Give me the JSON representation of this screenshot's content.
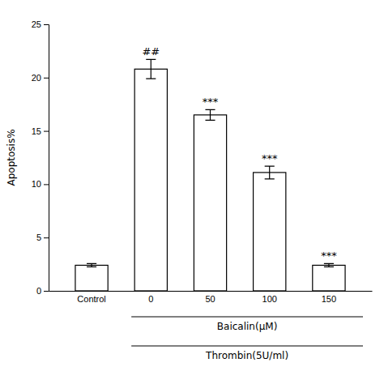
{
  "chart_data": {
    "type": "bar",
    "categories": [
      "Control",
      "0",
      "50",
      "100",
      "150"
    ],
    "values": [
      2.4,
      20.8,
      16.5,
      11.1,
      2.4
    ],
    "errors": [
      0.15,
      0.9,
      0.5,
      0.6,
      0.15
    ],
    "color": "#ffffff",
    "ylabel": "Apoptosis%",
    "ylim": [
      0,
      25
    ],
    "yticks": [
      0,
      5,
      10,
      15,
      20,
      25
    ],
    "annotations": [
      {
        "text": "##",
        "category": "0"
      },
      {
        "text": "***",
        "category": "50"
      },
      {
        "text": "***",
        "category": "100"
      },
      {
        "text": "***",
        "category": "150"
      }
    ],
    "group_labels": [
      {
        "text": "Baicalin(μM)",
        "from": "0",
        "to": "150"
      },
      {
        "text": "Thrombin(5U/ml)",
        "from": "0",
        "to": "150"
      }
    ]
  }
}
